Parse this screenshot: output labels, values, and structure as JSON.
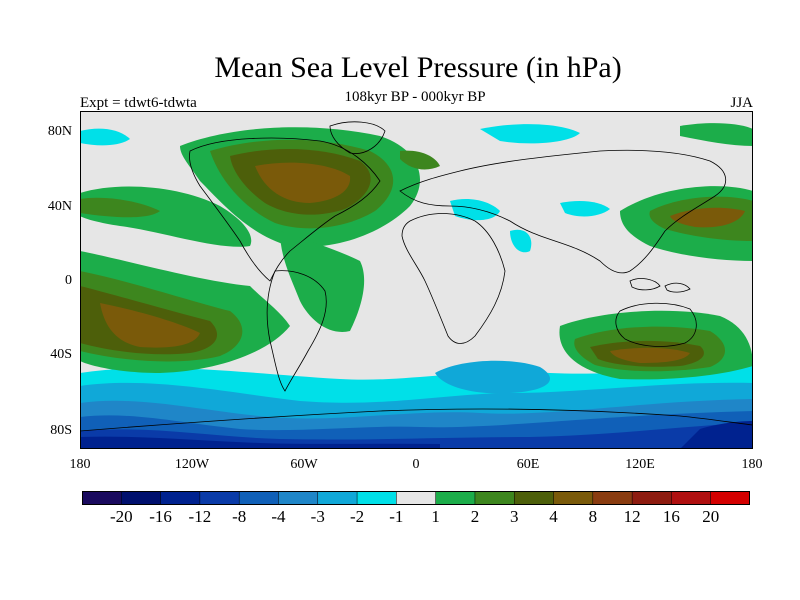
{
  "title": "Mean Sea Level Pressure (in hPa)",
  "subtitle": "108kyr BP - 000kyr BP",
  "experiment_label": "Expt = tdwt6-tdwta",
  "season_label": "JJA",
  "axes": {
    "y_labels": [
      "80N",
      "40N",
      "0",
      "40S",
      "80S"
    ],
    "x_labels": [
      "180",
      "120W",
      "60W",
      "0",
      "60E",
      "120E",
      "180"
    ]
  },
  "colorbar": {
    "colors": [
      "#1a0a5e",
      "#00106e",
      "#00228f",
      "#0a3ba8",
      "#1060b8",
      "#1f86c8",
      "#10a8d8",
      "#00e0e8",
      "#e6e6e6",
      "#1cad4a",
      "#3d861e",
      "#4d5f0a",
      "#7a5a0a",
      "#8a3c10",
      "#8e1c10",
      "#b01010",
      "#d40000"
    ],
    "labels": [
      "-20",
      "-16",
      "-12",
      "-8",
      "-4",
      "-3",
      "-2",
      "-1",
      "1",
      "2",
      "3",
      "4",
      "8",
      "12",
      "16",
      "20"
    ]
  },
  "palette": {
    "background": "#e6e6e6",
    "cyan": "#00e0e8",
    "light_blue": "#10a8d8",
    "mid_blue": "#1f86c8",
    "blue": "#1060b8",
    "dark_blue": "#0a3ba8",
    "green": "#1cad4a",
    "dark_green": "#3d861e",
    "olive": "#4d5f0a",
    "brown": "#7a5a0a"
  }
}
